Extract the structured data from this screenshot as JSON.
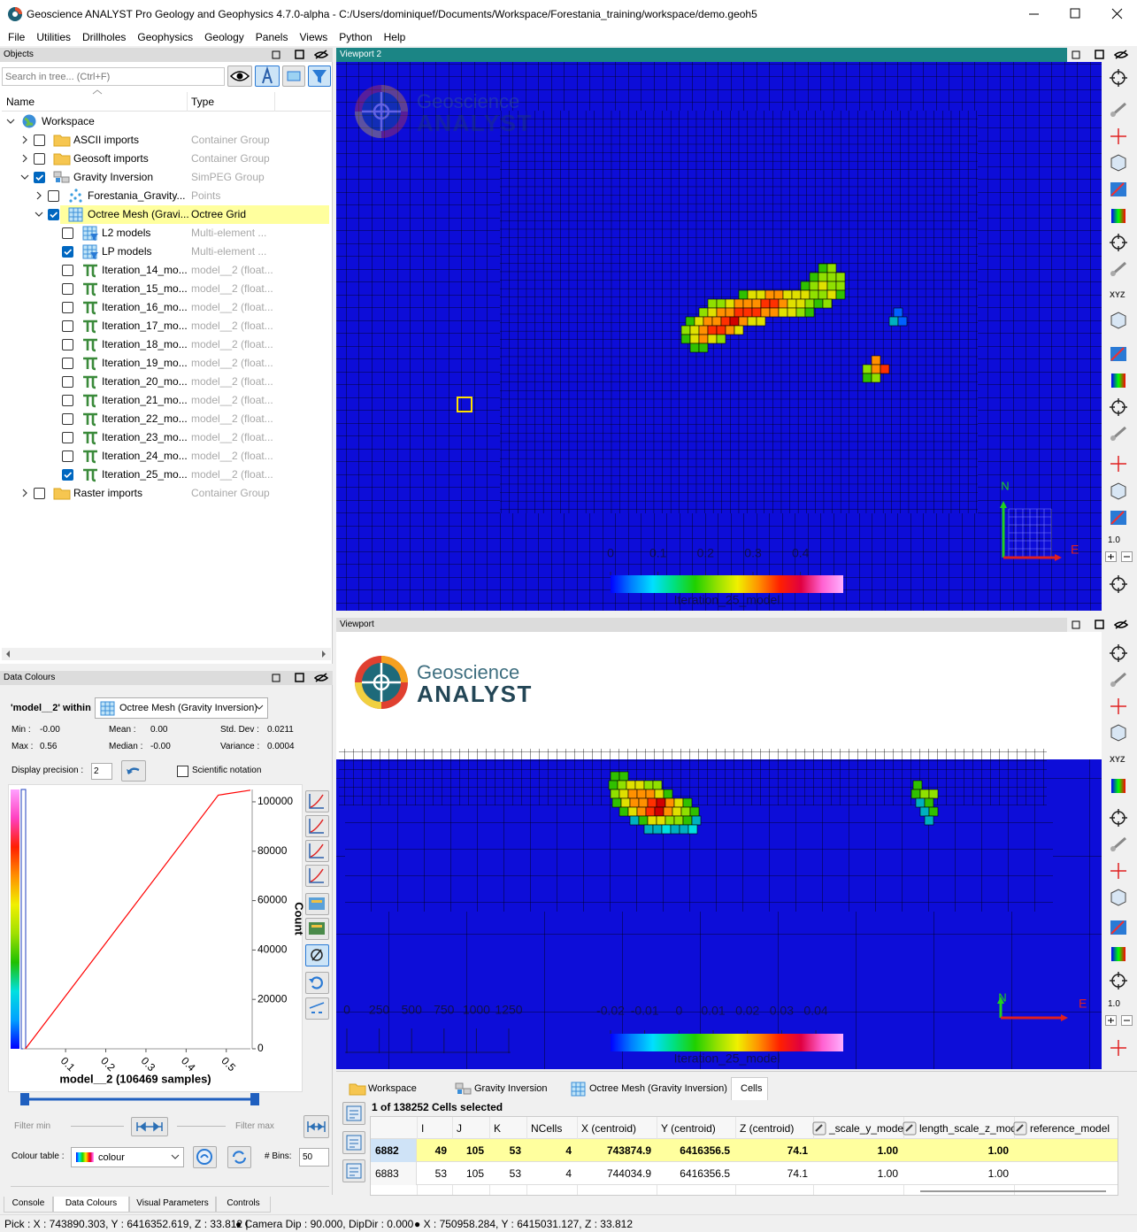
{
  "window": {
    "title": "Geoscience ANALYST Pro Geology and Geophysics 4.7.0-alpha - C:/Users/dominiquef/Documents/Workspace/Forestania_training/workspace/demo.geoh5"
  },
  "menu": [
    "File",
    "Utilities",
    "Drillholes",
    "Geophysics",
    "Geology",
    "Panels",
    "Views",
    "Python",
    "Help"
  ],
  "objects": {
    "title": "Objects",
    "search_placeholder": "Search in tree... (Ctrl+F)",
    "columns": [
      "Name",
      "Type"
    ],
    "tree": [
      {
        "name": "Workspace",
        "expanded": true,
        "children": [
          {
            "name": "ASCII imports",
            "type": "Container Group",
            "checked": false,
            "expanded": false
          },
          {
            "name": "Geosoft imports",
            "type": "Container Group",
            "checked": false,
            "expanded": false
          },
          {
            "name": "Gravity Inversion",
            "type": "SimPEG Group",
            "checked": true,
            "expanded": true,
            "children": [
              {
                "name": "Forestania_Gravity...",
                "type": "Points",
                "checked": false,
                "expanded": false
              },
              {
                "name": "Octree Mesh (Gravi...",
                "type": "Octree Grid",
                "checked": true,
                "expanded": true,
                "selected": true,
                "children": [
                  {
                    "name": "L2 models",
                    "type": "Multi-element ...",
                    "checked": false
                  },
                  {
                    "name": "LP models",
                    "type": "Multi-element ...",
                    "checked": true
                  },
                  {
                    "name": "Iteration_14_mo...",
                    "type": "model__2 (float...",
                    "checked": false
                  },
                  {
                    "name": "Iteration_15_mo...",
                    "type": "model__2 (float...",
                    "checked": false
                  },
                  {
                    "name": "Iteration_16_mo...",
                    "type": "model__2 (float...",
                    "checked": false
                  },
                  {
                    "name": "Iteration_17_mo...",
                    "type": "model__2 (float...",
                    "checked": false
                  },
                  {
                    "name": "Iteration_18_mo...",
                    "type": "model__2 (float...",
                    "checked": false
                  },
                  {
                    "name": "Iteration_19_mo...",
                    "type": "model__2 (float...",
                    "checked": false
                  },
                  {
                    "name": "Iteration_20_mo...",
                    "type": "model__2 (float...",
                    "checked": false
                  },
                  {
                    "name": "Iteration_21_mo...",
                    "type": "model__2 (float...",
                    "checked": false
                  },
                  {
                    "name": "Iteration_22_mo...",
                    "type": "model__2 (float...",
                    "checked": false
                  },
                  {
                    "name": "Iteration_23_mo...",
                    "type": "model__2 (float...",
                    "checked": false
                  },
                  {
                    "name": "Iteration_24_mo...",
                    "type": "model__2 (float...",
                    "checked": false
                  },
                  {
                    "name": "Iteration_25_mo...",
                    "type": "model__2 (float...",
                    "checked": true
                  }
                ]
              }
            ]
          },
          {
            "name": "Raster imports",
            "type": "Container Group",
            "checked": false,
            "expanded": false
          }
        ]
      }
    ]
  },
  "viewports": [
    {
      "title": "Viewport 2",
      "logo": [
        "Geoscience",
        "ANALYST"
      ],
      "colorbar": {
        "lim": [
          0,
          0.49
        ],
        "ticks": [
          0,
          0.1,
          0.2,
          0.3,
          0.4
        ],
        "title": "Iteration_25_model"
      },
      "north": "N",
      "east": "E",
      "toolbar": {
        "xyz": "XYZ",
        "zoom": "1.0"
      }
    },
    {
      "title": "Viewport",
      "logo": [
        "Geoscience",
        "ANALYST"
      ],
      "scale": {
        "lim": [
          0,
          1250
        ],
        "ticks": [
          0,
          250,
          500,
          750,
          1000,
          1250
        ]
      },
      "colorbar": {
        "lim": [
          -0.02,
          0.048
        ],
        "ticks": [
          -0.02,
          -0.01,
          0,
          0.01,
          0.02,
          0.03,
          0.04
        ],
        "title": "Iteration_25_model"
      },
      "north": "N",
      "east": "E",
      "toolbar": {
        "xyz": "XYZ",
        "zoom": "1.0"
      }
    }
  ],
  "data_colours": {
    "title": "Data Colours",
    "within_label": "'model__2' within",
    "object": "Octree Mesh (Gravity Inversion)",
    "stats": [
      {
        "label": "Min :",
        "value": "-0.00"
      },
      {
        "label": "Mean :",
        "value": "0.00"
      },
      {
        "label": "Std. Dev :",
        "value": "0.0211"
      },
      {
        "label": "Max :",
        "value": "0.56"
      },
      {
        "label": "Median :",
        "value": "-0.00"
      },
      {
        "label": "Variance :",
        "value": "0.0004"
      }
    ],
    "display_precision_label": "Display precision :",
    "display_precision": 2,
    "scientific_notation": "Scientific notation",
    "filter_min": "Filter min",
    "filter_max": "Filter max",
    "colour_table_label": "Colour table :",
    "colour_table": "colour",
    "bins_label": "# Bins:",
    "bins": 50
  },
  "chart_data": {
    "type": "line",
    "title": "model__2 (106469 samples)",
    "y_label": "Count",
    "x": [
      0,
      0.48,
      0.56
    ],
    "values": [
      0,
      102700,
      104700
    ],
    "color": "#ff0000",
    "xlim": [
      -0.006,
      0.56
    ],
    "ylim": [
      0,
      105000
    ],
    "xticks": [
      0.1,
      0.2,
      0.3,
      0.4,
      0.5
    ],
    "yticks": [
      0,
      20000,
      40000,
      60000,
      80000,
      100000
    ],
    "grid": false
  },
  "table_panel": {
    "tabs": [
      "Workspace",
      "Gravity Inversion",
      "Octree Mesh (Gravity Inversion)",
      "Cells"
    ],
    "active_tab": 3,
    "selection": "1 of 138252 Cells selected",
    "columns": [
      "I",
      "J",
      "K",
      "NCells",
      "X (centroid)",
      "Y (centroid)",
      "Z (centroid)",
      "_scale_y_model",
      "length_scale_z_model",
      "reference_model"
    ],
    "rows": [
      {
        "label": "6882",
        "selected": true,
        "cells": [
          49,
          105,
          53,
          4,
          743874.9,
          6416356.5,
          74.1,
          "1.00",
          "1.00"
        ]
      },
      {
        "label": "6883",
        "selected": false,
        "cells": [
          53,
          105,
          53,
          4,
          744034.9,
          6416356.5,
          74.1,
          "1.00",
          "1.00"
        ]
      }
    ]
  },
  "bottom_tabs": {
    "tabs": [
      "Console",
      "Data Colours",
      "Visual Parameters",
      "Controls"
    ],
    "active": 1
  },
  "status": [
    "Pick : X : 743890.303, Y : 6416352.619, Z : 33.812 |",
    "● Camera Dip : 90.000, DipDir : 0.000",
    "● X : 750958.284, Y : 6415031.127, Z : 33.812"
  ]
}
